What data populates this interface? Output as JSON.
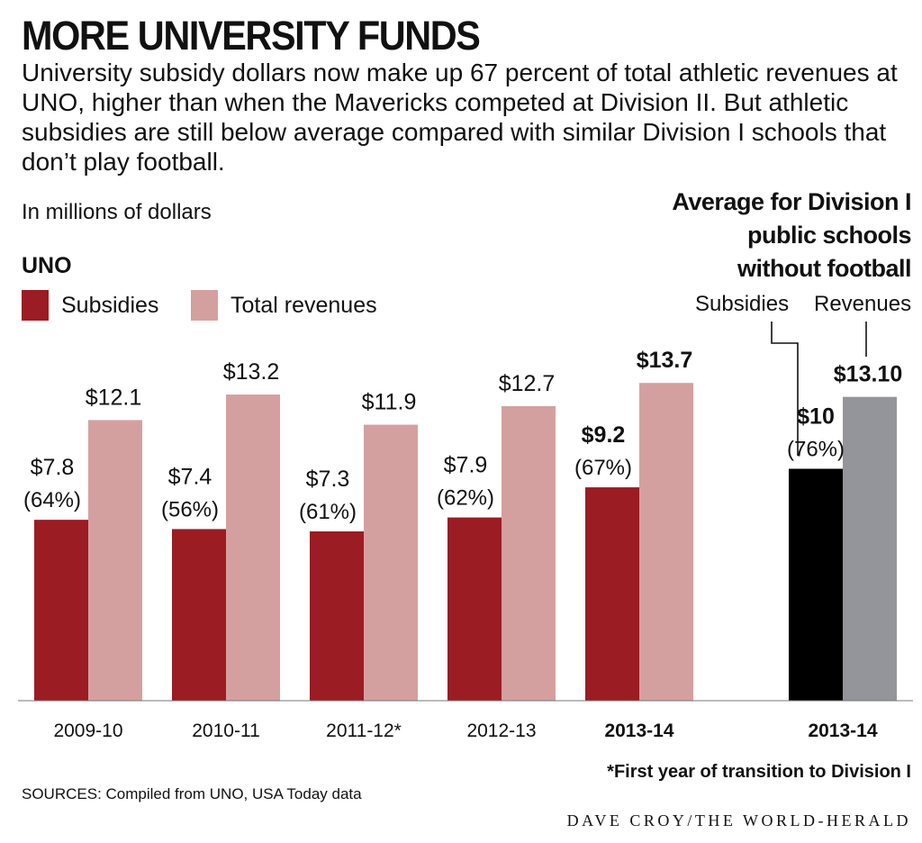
{
  "title": "MORE UNIVERSITY FUNDS",
  "subtitle": "University subsidy dollars now make up 67 percent of total athletic revenues at UNO, higher than when the Mavericks competed at Division II. But athletic subsidies are still below average compared with similar Division I schools that don’t play football.",
  "units": "In millions of dollars",
  "uno_label": "UNO",
  "legend": {
    "subsidies": "Subsidies",
    "revenues": "Total revenues"
  },
  "avg_title": [
    "Average for Division I",
    "public schools",
    "without football"
  ],
  "avg_legend": {
    "subsidies": "Subsidies",
    "revenues": "Revenues"
  },
  "footnote": "*First year of transition to Division I",
  "sources": "SOURCES: Compiled from UNO, USA Today data",
  "credit": "DAVE CROY/THE WORLD-HERALD",
  "colors": {
    "subsidies": "#9b1c22",
    "revenues": "#d4a09f",
    "avg_subsidies": "#000000",
    "avg_revenues": "#94959a"
  },
  "chart_data": {
    "type": "bar",
    "title": "MORE UNIVERSITY FUNDS",
    "ylabel": "In millions of dollars",
    "ylim": [
      0,
      15.3
    ],
    "grid": false,
    "groups": [
      {
        "category": "2009-10",
        "subsidies": 7.8,
        "revenues": 12.1,
        "subsidies_label": "$7.8",
        "pct_label": "(64%)",
        "revenues_label": "$12.1",
        "bold": false,
        "kind": "uno"
      },
      {
        "category": "2010-11",
        "subsidies": 7.4,
        "revenues": 13.2,
        "subsidies_label": "$7.4",
        "pct_label": "(56%)",
        "revenues_label": "$13.2",
        "bold": false,
        "kind": "uno"
      },
      {
        "category": "2011-12*",
        "subsidies": 7.3,
        "revenues": 11.9,
        "subsidies_label": "$7.3",
        "pct_label": "(61%)",
        "revenues_label": "$11.9",
        "bold": false,
        "kind": "uno"
      },
      {
        "category": "2012-13",
        "subsidies": 7.9,
        "revenues": 12.7,
        "subsidies_label": "$7.9",
        "pct_label": "(62%)",
        "revenues_label": "$12.7",
        "bold": false,
        "kind": "uno"
      },
      {
        "category": "2013-14",
        "subsidies": 9.2,
        "revenues": 13.7,
        "subsidies_label": "$9.2",
        "pct_label": "(67%)",
        "revenues_label": "$13.7",
        "bold": true,
        "kind": "uno"
      },
      {
        "category": "2013-14",
        "subsidies": 10,
        "revenues": 13.1,
        "subsidies_label": "$10",
        "pct_label": "(76%)",
        "revenues_label": "$13.10",
        "bold": true,
        "kind": "avg"
      }
    ]
  }
}
